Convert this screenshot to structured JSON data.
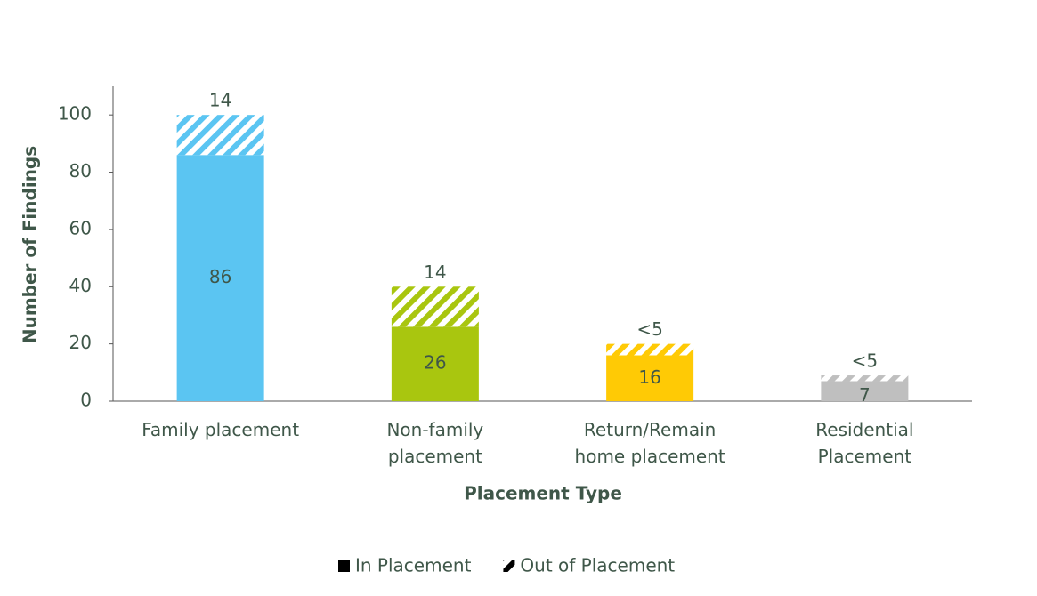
{
  "chart_data": {
    "type": "stacked_bar",
    "x_label": "Placement Type",
    "y_label": "Number of Findings",
    "categories": [
      "Family placement",
      "Non-family\nplacement",
      "Return/Remain\nhome placement",
      "Residential\nPlacement"
    ],
    "colors": [
      "#5bc5f2",
      "#a9c60f",
      "#ffca05",
      "#bfbfbf"
    ],
    "series": [
      {
        "name": "In Placement",
        "color": "#000000",
        "hatch": false,
        "values": [
          86,
          26,
          16,
          7
        ]
      },
      {
        "name": "Out of Placement",
        "color": "#000000",
        "hatch": true,
        "values": [
          14,
          14,
          4,
          2
        ],
        "value_labels": [
          "14",
          "14",
          "<5",
          "<5"
        ]
      }
    ],
    "ylim": [
      0,
      110
    ],
    "yticks": [
      0,
      20,
      40,
      60,
      80,
      100
    ],
    "legend": "bottom"
  }
}
